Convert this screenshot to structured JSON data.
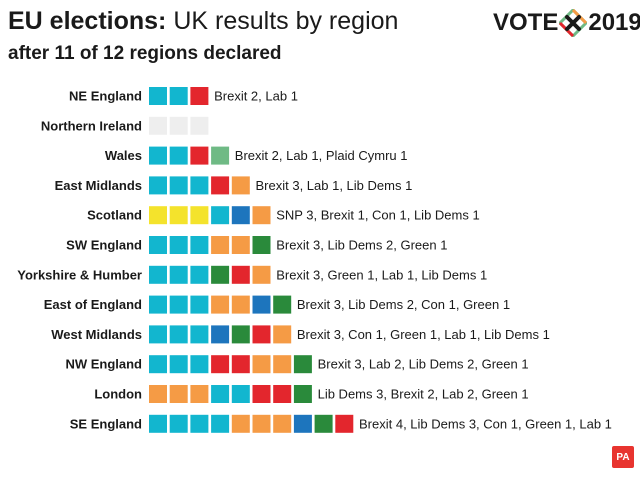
{
  "header": {
    "title_bold": "EU elections:",
    "title_rest": "UK results by region",
    "subtitle": "after 11 of 12 regions declared"
  },
  "logo": {
    "left": "VOTE",
    "right": "2019"
  },
  "badge": "PA",
  "colors": {
    "brexit": "#12b6cf",
    "lab": "#e3262d",
    "libdem": "#f59b45",
    "green": "#2a8a3b",
    "con": "#1d75bd",
    "snp": "#f4e32c",
    "plaid": "#6fba85",
    "undeclared": "#eeeeee"
  },
  "chart_data": {
    "type": "table",
    "rows": [
      {
        "region": "NE England",
        "seats": [
          "brexit",
          "brexit",
          "lab"
        ],
        "text": "Brexit 2, Lab 1"
      },
      {
        "region": "Northern Ireland",
        "seats": [
          "undeclared",
          "undeclared",
          "undeclared"
        ],
        "text": ""
      },
      {
        "region": "Wales",
        "seats": [
          "brexit",
          "brexit",
          "lab",
          "plaid"
        ],
        "text": "Brexit 2, Lab 1, Plaid Cymru 1"
      },
      {
        "region": "East Midlands",
        "seats": [
          "brexit",
          "brexit",
          "brexit",
          "lab",
          "libdem"
        ],
        "text": "Brexit 3, Lab 1, Lib Dems 1"
      },
      {
        "region": "Scotland",
        "seats": [
          "snp",
          "snp",
          "snp",
          "brexit",
          "con",
          "libdem"
        ],
        "text": "SNP 3, Brexit 1, Con 1, Lib Dems 1"
      },
      {
        "region": "SW England",
        "seats": [
          "brexit",
          "brexit",
          "brexit",
          "libdem",
          "libdem",
          "green"
        ],
        "text": "Brexit 3, Lib Dems 2, Green 1"
      },
      {
        "region": "Yorkshire & Humber",
        "seats": [
          "brexit",
          "brexit",
          "brexit",
          "green",
          "lab",
          "libdem"
        ],
        "text": "Brexit 3, Green 1, Lab 1, Lib Dems 1"
      },
      {
        "region": "East of England",
        "seats": [
          "brexit",
          "brexit",
          "brexit",
          "libdem",
          "libdem",
          "con",
          "green"
        ],
        "text": "Brexit 3, Lib Dems 2, Con 1, Green 1"
      },
      {
        "region": "West Midlands",
        "seats": [
          "brexit",
          "brexit",
          "brexit",
          "con",
          "green",
          "lab",
          "libdem"
        ],
        "text": "Brexit 3, Con 1, Green 1, Lab 1, Lib Dems 1"
      },
      {
        "region": "NW England",
        "seats": [
          "brexit",
          "brexit",
          "brexit",
          "lab",
          "lab",
          "libdem",
          "libdem",
          "green"
        ],
        "text": "Brexit 3, Lab 2, Lib Dems 2, Green 1"
      },
      {
        "region": "London",
        "seats": [
          "libdem",
          "libdem",
          "libdem",
          "brexit",
          "brexit",
          "lab",
          "lab",
          "green"
        ],
        "text": "Lib Dems 3, Brexit 2, Lab 2, Green 1"
      },
      {
        "region": "SE England",
        "seats": [
          "brexit",
          "brexit",
          "brexit",
          "brexit",
          "libdem",
          "libdem",
          "libdem",
          "con",
          "green",
          "lab"
        ],
        "text": "Brexit 4, Lib Dems 3, Con 1, Green 1, Lab 1"
      }
    ]
  }
}
